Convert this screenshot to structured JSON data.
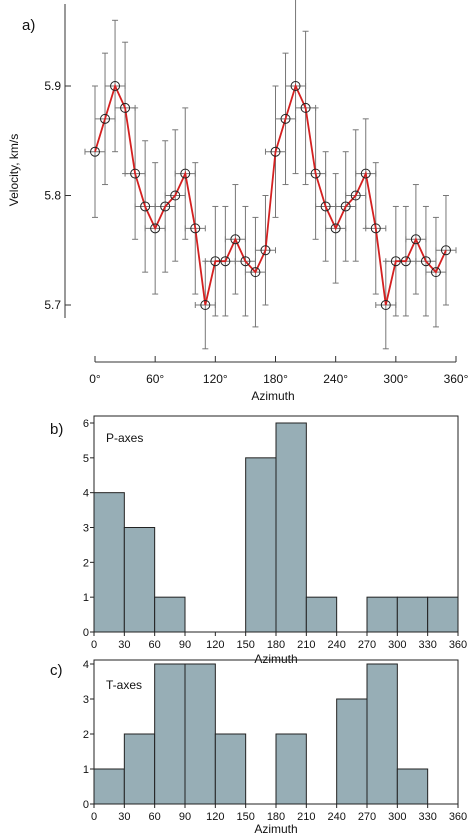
{
  "chart_data": [
    {
      "panel_label": "a)",
      "type": "line",
      "xlabel": "Azimuth",
      "ylabel": "Velocity, km/s",
      "xlim": [
        -8,
        365
      ],
      "ylim": [
        5.66,
        5.99
      ],
      "xticks": [
        0,
        60,
        120,
        180,
        240,
        300,
        360
      ],
      "xtick_labels": [
        "0°",
        "60°",
        "120°",
        "180°",
        "240°",
        "300°",
        "360°"
      ],
      "yticks": [
        5.7,
        5.8,
        5.9
      ],
      "ytick_labels": [
        "5.7",
        "5.8",
        "5.9"
      ],
      "line_color": "#d42020",
      "x_error": 10,
      "series": [
        {
          "x": [
            0,
            10,
            20,
            30,
            40,
            50,
            60,
            70,
            80,
            90,
            100,
            110,
            120,
            130,
            140,
            150,
            160,
            170,
            180,
            190,
            200,
            210,
            220,
            230,
            240,
            250,
            260,
            270,
            280,
            290,
            300,
            310,
            320,
            330,
            340,
            350
          ],
          "y": [
            5.84,
            5.87,
            5.9,
            5.88,
            5.82,
            5.79,
            5.77,
            5.79,
            5.8,
            5.82,
            5.77,
            5.7,
            5.74,
            5.74,
            5.76,
            5.74,
            5.73,
            5.75,
            5.84,
            5.87,
            5.9,
            5.88,
            5.82,
            5.79,
            5.77,
            5.79,
            5.8,
            5.82,
            5.77,
            5.7,
            5.74,
            5.74,
            5.76,
            5.74,
            5.73,
            5.75
          ],
          "y_error": [
            0.06,
            0.06,
            0.06,
            0.06,
            0.06,
            0.06,
            0.06,
            0.06,
            0.06,
            0.06,
            0.06,
            0.04,
            0.05,
            0.05,
            0.05,
            0.05,
            0.05,
            0.05,
            0.06,
            0.06,
            0.08,
            0.07,
            0.06,
            0.05,
            0.05,
            0.05,
            0.06,
            0.05,
            0.06,
            0.04,
            0.05,
            0.05,
            0.05,
            0.05,
            0.05,
            0.05
          ]
        }
      ]
    },
    {
      "panel_label": "b)",
      "type": "bar",
      "series_label": "P-axes",
      "xlabel": "Azimuth",
      "bin_edges": [
        0,
        30,
        60,
        90,
        120,
        150,
        180,
        210,
        240,
        270,
        300,
        330,
        360
      ],
      "values": [
        4,
        3,
        1,
        0,
        0,
        5,
        6,
        1,
        0,
        1,
        1,
        1
      ],
      "ylim": [
        0,
        6
      ],
      "yticks": [
        0,
        1,
        2,
        3,
        4,
        5,
        6
      ],
      "xtick_labels": [
        "0",
        "30",
        "60",
        "90",
        "120",
        "150",
        "180",
        "210",
        "240",
        "270",
        "300",
        "330",
        "360"
      ],
      "bar_color": "#97aeb6"
    },
    {
      "panel_label": "c)",
      "type": "bar",
      "series_label": "T-axes",
      "xlabel": "Azimuth",
      "bin_edges": [
        0,
        30,
        60,
        90,
        120,
        150,
        180,
        210,
        240,
        270,
        300,
        330,
        360
      ],
      "values": [
        1,
        2,
        4,
        4,
        2,
        0,
        2,
        0,
        3,
        4,
        1,
        0
      ],
      "ylim": [
        0,
        4
      ],
      "yticks": [
        0,
        1,
        2,
        3,
        4
      ],
      "xtick_labels": [
        "0",
        "30",
        "60",
        "90",
        "120",
        "150",
        "180",
        "210",
        "240",
        "270",
        "300",
        "330",
        "360"
      ],
      "bar_color": "#97aeb6"
    }
  ]
}
